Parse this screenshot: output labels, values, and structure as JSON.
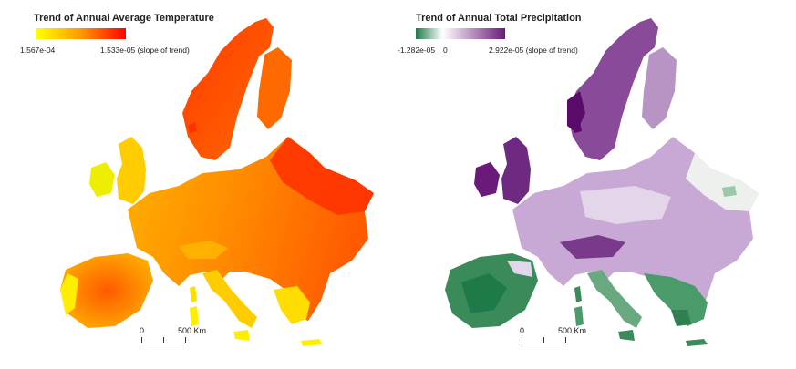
{
  "maps": {
    "temperature": {
      "title": "Trend of Annual Average Temperature",
      "legend": {
        "min_label": "1.567e-04",
        "max_label": "1.533e-05 (slope of trend)",
        "colors": [
          "#ffff00",
          "#ff9900",
          "#ff0000"
        ]
      }
    },
    "precipitation": {
      "title": "Trend of Annual Total Precipitation",
      "legend": {
        "min_label": "-1.282e-05",
        "mid_label": "0",
        "max_label": "2.922e-05 (slope of trend)",
        "colors": [
          "#1f7a4a",
          "#ffffff",
          "#6a1a7a"
        ]
      }
    }
  },
  "scalebar": {
    "zero_label": "0",
    "distance_label": "500 Km"
  }
}
